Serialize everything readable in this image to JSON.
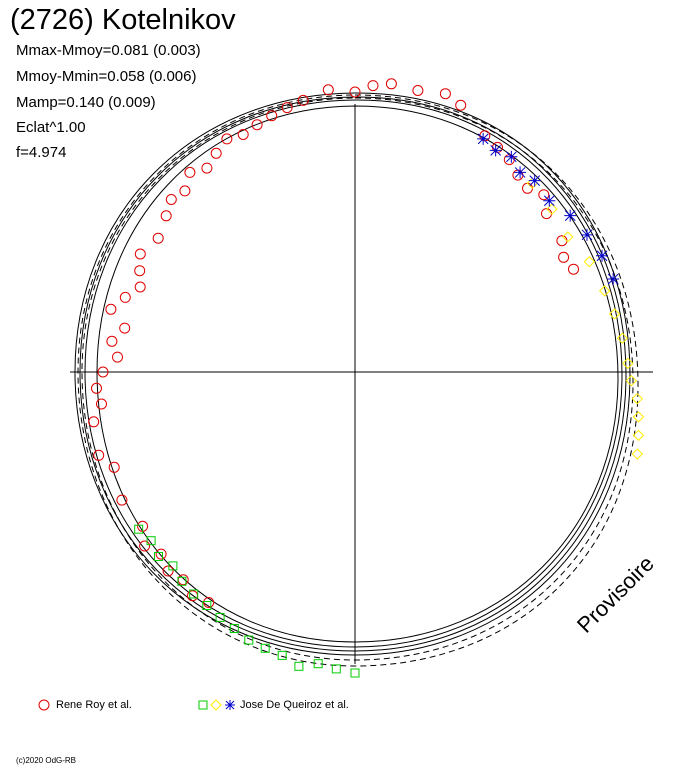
{
  "header": {
    "title": "(2726) Kotelnikov",
    "stats": [
      "Mmax-Mmoy=0.081 (0.003)",
      "Mmoy-Mmin=0.058 (0.006)",
      "Mamp=0.140 (0.009)",
      "Eclat^1.00",
      "f=4.974"
    ]
  },
  "legend": {
    "items": [
      {
        "label": "Rene Roy et al.",
        "markers": [
          "circle"
        ],
        "colors": [
          "#e00000"
        ]
      },
      {
        "label": "Jose De Queiroz et al.",
        "markers": [
          "square",
          "diamond",
          "star"
        ],
        "colors": [
          "#00cc00",
          "#ffee00",
          "#0000cc"
        ]
      }
    ]
  },
  "watermark": "Provisoire",
  "copyright": "(c)2020 OdG-RB",
  "chart_data": {
    "type": "scatter",
    "coordinate_system": "polar",
    "period_hours": 4.974,
    "angle_unit": "rotational phase (0 at top, clockwise)",
    "radius_unit": "relative magnitude",
    "stats": {
      "Mmax_minus_Mmoy": 0.081,
      "Mmoy_minus_Mmin": 0.058,
      "Mamp": 0.14
    },
    "series": [
      {
        "name": "Rene Roy et al.",
        "marker": "circle",
        "color": "#e00000",
        "points": [
          {
            "phase": 0.0,
            "mag": 0.0
          },
          {
            "phase": 0.01,
            "mag": 0.01
          },
          {
            "phase": 0.02,
            "mag": 0.015
          },
          {
            "phase": 0.035,
            "mag": 0.012
          },
          {
            "phase": 0.05,
            "mag": 0.018
          },
          {
            "phase": 0.06,
            "mag": 0.01
          },
          {
            "phase": 0.08,
            "mag": -0.015
          },
          {
            "phase": 0.09,
            "mag": -0.02
          },
          {
            "phase": 0.1,
            "mag": -0.025
          },
          {
            "phase": 0.11,
            "mag": -0.035
          },
          {
            "phase": 0.12,
            "mag": -0.04
          },
          {
            "phase": 0.13,
            "mag": -0.03
          },
          {
            "phase": 0.14,
            "mag": -0.045
          },
          {
            "phase": 0.16,
            "mag": -0.05
          },
          {
            "phase": 0.17,
            "mag": -0.06
          },
          {
            "phase": 0.18,
            "mag": -0.055
          },
          {
            "phase": 0.59,
            "mag": -0.01
          },
          {
            "phase": 0.6,
            "mag": -0.005
          },
          {
            "phase": 0.61,
            "mag": -0.015
          },
          {
            "phase": 0.62,
            "mag": -0.01
          },
          {
            "phase": 0.63,
            "mag": -0.02
          },
          {
            "phase": 0.64,
            "mag": -0.01
          },
          {
            "phase": 0.65,
            "mag": -0.025
          },
          {
            "phase": 0.67,
            "mag": -0.02
          },
          {
            "phase": 0.69,
            "mag": -0.03
          },
          {
            "phase": 0.7,
            "mag": -0.015
          },
          {
            "phase": 0.72,
            "mag": -0.02
          },
          {
            "phase": 0.73,
            "mag": -0.035
          },
          {
            "phase": 0.74,
            "mag": -0.03
          },
          {
            "phase": 0.75,
            "mag": -0.04
          },
          {
            "phase": 0.76,
            "mag": -0.06
          },
          {
            "phase": 0.77,
            "mag": -0.05
          },
          {
            "phase": 0.78,
            "mag": -0.065
          },
          {
            "phase": 0.79,
            "mag": -0.04
          },
          {
            "phase": 0.8,
            "mag": -0.055
          },
          {
            "phase": 0.81,
            "mag": -0.07
          },
          {
            "phase": 0.82,
            "mag": -0.06
          },
          {
            "phase": 0.83,
            "mag": -0.05
          },
          {
            "phase": 0.845,
            "mag": -0.06
          },
          {
            "phase": 0.86,
            "mag": -0.05
          },
          {
            "phase": 0.87,
            "mag": -0.04
          },
          {
            "phase": 0.88,
            "mag": -0.045
          },
          {
            "phase": 0.89,
            "mag": -0.03
          },
          {
            "phase": 0.9,
            "mag": -0.04
          },
          {
            "phase": 0.91,
            "mag": -0.03
          },
          {
            "phase": 0.92,
            "mag": -0.02
          },
          {
            "phase": 0.93,
            "mag": -0.025
          },
          {
            "phase": 0.94,
            "mag": -0.02
          },
          {
            "phase": 0.95,
            "mag": -0.015
          },
          {
            "phase": 0.96,
            "mag": -0.01
          },
          {
            "phase": 0.97,
            "mag": -0.005
          },
          {
            "phase": 0.985,
            "mag": 0.005
          }
        ]
      },
      {
        "name": "Jose De Queiroz et al.",
        "marker": "square",
        "color": "#00cc00",
        "points": [
          {
            "phase": 0.5,
            "mag": 0.03
          },
          {
            "phase": 0.51,
            "mag": 0.025
          },
          {
            "phase": 0.52,
            "mag": 0.02
          },
          {
            "phase": 0.53,
            "mag": 0.028
          },
          {
            "phase": 0.54,
            "mag": 0.018
          },
          {
            "phase": 0.55,
            "mag": 0.015
          },
          {
            "phase": 0.56,
            "mag": 0.012
          },
          {
            "phase": 0.57,
            "mag": 0.005
          },
          {
            "phase": 0.58,
            "mag": 0.0
          },
          {
            "phase": 0.59,
            "mag": -0.005
          },
          {
            "phase": 0.6,
            "mag": -0.008
          },
          {
            "phase": 0.61,
            "mag": -0.012
          },
          {
            "phase": 0.62,
            "mag": -0.02
          },
          {
            "phase": 0.63,
            "mag": -0.015
          },
          {
            "phase": 0.64,
            "mag": -0.022
          },
          {
            "phase": 0.65,
            "mag": -0.018
          }
        ]
      },
      {
        "name": "Jose De Queiroz et al.",
        "marker": "diamond",
        "color": "#ffee00",
        "points": [
          {
            "phase": 0.12,
            "mag": -0.03
          },
          {
            "phase": 0.14,
            "mag": -0.035
          },
          {
            "phase": 0.16,
            "mag": -0.04
          },
          {
            "phase": 0.18,
            "mag": -0.03
          },
          {
            "phase": 0.2,
            "mag": -0.025
          },
          {
            "phase": 0.215,
            "mag": -0.02
          },
          {
            "phase": 0.23,
            "mag": -0.015
          },
          {
            "phase": 0.245,
            "mag": -0.01
          },
          {
            "phase": 0.255,
            "mag": -0.005
          },
          {
            "phase": 0.265,
            "mag": 0.005
          },
          {
            "phase": 0.275,
            "mag": 0.01
          },
          {
            "phase": 0.285,
            "mag": 0.015
          },
          {
            "phase": 0.295,
            "mag": 0.02
          }
        ]
      },
      {
        "name": "Jose De Queiroz et al.",
        "marker": "star",
        "color": "#0000cc",
        "points": [
          {
            "phase": 0.08,
            "mag": -0.02
          },
          {
            "phase": 0.09,
            "mag": -0.025
          },
          {
            "phase": 0.1,
            "mag": -0.02
          },
          {
            "phase": 0.11,
            "mag": -0.03
          },
          {
            "phase": 0.12,
            "mag": -0.025
          },
          {
            "phase": 0.135,
            "mag": -0.03
          },
          {
            "phase": 0.15,
            "mag": -0.02
          },
          {
            "phase": 0.165,
            "mag": -0.015
          },
          {
            "phase": 0.18,
            "mag": -0.01
          },
          {
            "phase": 0.195,
            "mag": -0.008
          }
        ]
      }
    ]
  }
}
